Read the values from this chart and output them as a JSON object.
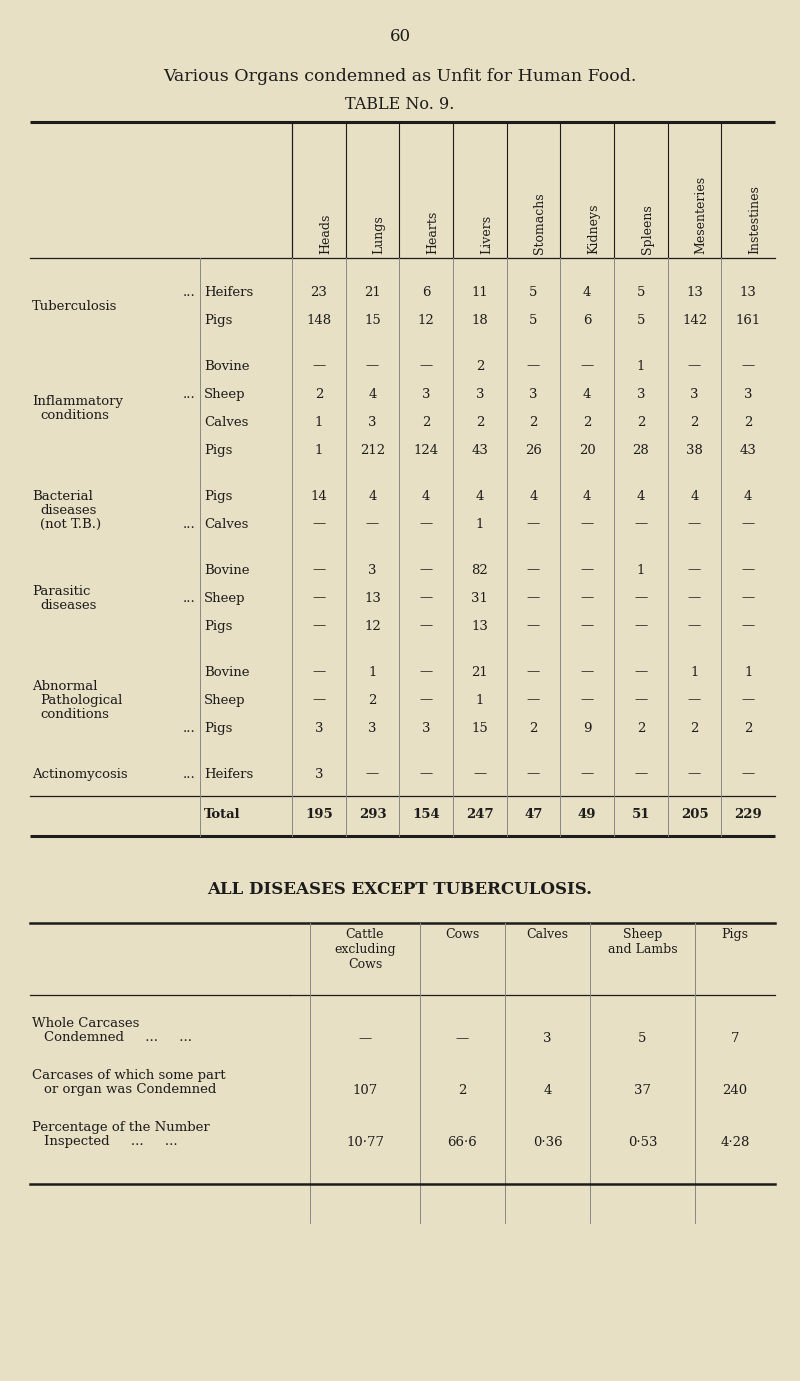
{
  "page_number": "60",
  "title1": "Various Organs condemned as Unfit for Human Food.",
  "title2": "TABLE No. 9.",
  "bg_color": "#e8e0c4",
  "col_headers": [
    "Heads",
    "Lungs",
    "Hearts",
    "Livers",
    "Stomachs",
    "Kidneys",
    "Spleens",
    "Mesenteries",
    "Instestines"
  ],
  "table1_groups": [
    {
      "disease_lines": [
        "Tuberculosis"
      ],
      "dots_row": 0,
      "rows": [
        {
          "animal": "Heifers",
          "values": [
            "23",
            "21",
            "6",
            "11",
            "5",
            "4",
            "5",
            "13",
            "13"
          ]
        },
        {
          "animal": "Pigs",
          "values": [
            "148",
            "15",
            "12",
            "18",
            "5",
            "6",
            "5",
            "142",
            "161"
          ]
        }
      ]
    },
    {
      "disease_lines": [
        "Inflammatory",
        "conditions"
      ],
      "dots_row": 1,
      "rows": [
        {
          "animal": "Bovine",
          "values": [
            "—",
            "—",
            "—",
            "2",
            "—",
            "—",
            "1",
            "—",
            "—"
          ]
        },
        {
          "animal": "Sheep",
          "values": [
            "2",
            "4",
            "3",
            "3",
            "3",
            "4",
            "3",
            "3",
            "3"
          ]
        },
        {
          "animal": "Calves",
          "values": [
            "1",
            "3",
            "2",
            "2",
            "2",
            "2",
            "2",
            "2",
            "2"
          ]
        },
        {
          "animal": "Pigs",
          "values": [
            "1",
            "212",
            "124",
            "43",
            "26",
            "20",
            "28",
            "38",
            "43"
          ]
        }
      ]
    },
    {
      "disease_lines": [
        "Bacterial",
        "diseases",
        "(not T.B.)"
      ],
      "dots_row": 1,
      "rows": [
        {
          "animal": "Pigs",
          "values": [
            "14",
            "4",
            "4",
            "4",
            "4",
            "4",
            "4",
            "4",
            "4"
          ]
        },
        {
          "animal": "Calves",
          "values": [
            "—",
            "—",
            "—",
            "1",
            "—",
            "—",
            "—",
            "—",
            "—"
          ]
        }
      ]
    },
    {
      "disease_lines": [
        "Parasitic",
        "diseases"
      ],
      "dots_row": 1,
      "rows": [
        {
          "animal": "Bovine",
          "values": [
            "—",
            "3",
            "—",
            "82",
            "—",
            "—",
            "1",
            "—",
            "—"
          ]
        },
        {
          "animal": "Sheep",
          "values": [
            "—",
            "13",
            "—",
            "31",
            "—",
            "—",
            "—",
            "—",
            "—"
          ]
        },
        {
          "animal": "Pigs",
          "values": [
            "—",
            "12",
            "—",
            "13",
            "—",
            "—",
            "—",
            "—",
            "—"
          ]
        }
      ]
    },
    {
      "disease_lines": [
        "Abnormal",
        "Pathological",
        "conditions"
      ],
      "dots_row": 2,
      "rows": [
        {
          "animal": "Bovine",
          "values": [
            "—",
            "1",
            "—",
            "21",
            "—",
            "—",
            "—",
            "1",
            "1"
          ]
        },
        {
          "animal": "Sheep",
          "values": [
            "—",
            "2",
            "—",
            "1",
            "—",
            "—",
            "—",
            "—",
            "—"
          ]
        },
        {
          "animal": "Pigs",
          "values": [
            "3",
            "3",
            "3",
            "15",
            "2",
            "9",
            "2",
            "2",
            "2"
          ]
        }
      ]
    },
    {
      "disease_lines": [
        "Actinomycosis ..."
      ],
      "dots_row": -1,
      "rows": [
        {
          "animal": "Heifers",
          "values": [
            "3",
            "—",
            "—",
            "—",
            "—",
            "—",
            "—",
            "—",
            "—"
          ]
        }
      ]
    }
  ],
  "total_row": {
    "animal": "Total",
    "values": [
      "195",
      "293",
      "154",
      "247",
      "47",
      "49",
      "51",
      "205",
      "229"
    ]
  },
  "table2_title": "ALL DISEASES EXCEPT TUBERCULOSIS.",
  "table2_col_headers": [
    "Cattle\nexcluding\nCows",
    "Cows",
    "Calves",
    "Sheep\nand Lambs",
    "Pigs"
  ],
  "table2_rows": [
    {
      "label": [
        "Whole Carcases",
        "Condemned     ...     ..."
      ],
      "values": [
        "—",
        "—",
        "3",
        "5",
        "7"
      ]
    },
    {
      "label": [
        "Carcases of which some part",
        "or organ was Condemned"
      ],
      "values": [
        "107",
        "2",
        "4",
        "37",
        "240"
      ]
    },
    {
      "label": [
        "Percentage of the Number",
        "Inspected     ...     ..."
      ],
      "values": [
        "10·77",
        "66·6",
        "0·36",
        "0·53",
        "4·28"
      ]
    }
  ]
}
